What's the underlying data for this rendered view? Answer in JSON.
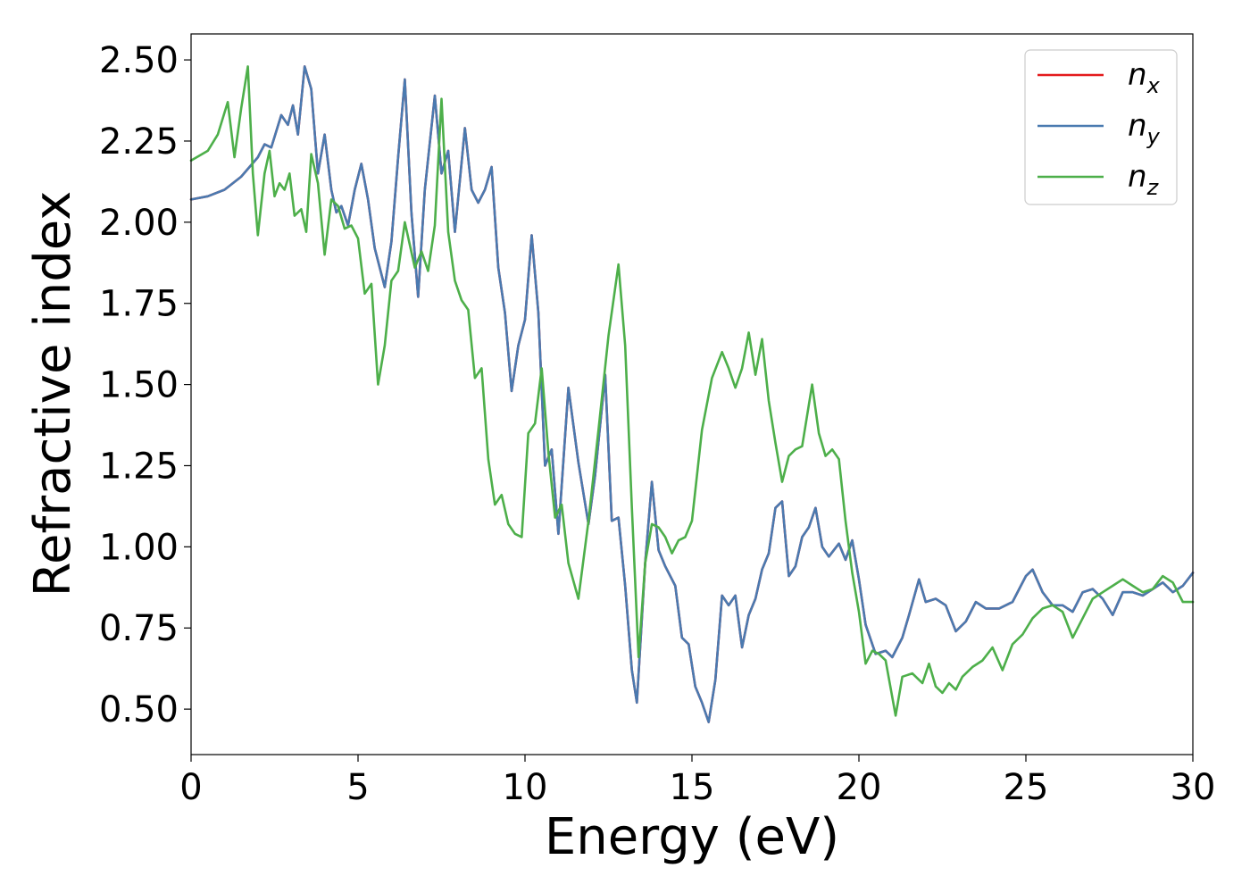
{
  "chart_data": {
    "type": "line",
    "title": "",
    "xlabel": "Energy (eV)",
    "ylabel": "Refractive index",
    "xlim": [
      0,
      30
    ],
    "ylim": [
      0.36,
      2.58
    ],
    "xticks": [
      0,
      5,
      10,
      15,
      20,
      25,
      30
    ],
    "xtick_labels": [
      "0",
      "5",
      "10",
      "15",
      "20",
      "25",
      "30"
    ],
    "yticks": [
      0.5,
      0.75,
      1.0,
      1.25,
      1.5,
      1.75,
      2.0,
      2.25,
      2.5
    ],
    "ytick_labels": [
      "0.50",
      "0.75",
      "1.00",
      "1.25",
      "1.50",
      "1.75",
      "2.00",
      "2.25",
      "2.50"
    ],
    "grid": false,
    "legend_position": "top-right",
    "series": [
      {
        "name": "n_x",
        "label_base": "n",
        "label_sub": "x",
        "color": "#e41a1c",
        "x": [
          0,
          0.5,
          1.0,
          1.5,
          2.0,
          2.2,
          2.4,
          2.7,
          2.9,
          3.05,
          3.2,
          3.4,
          3.6,
          3.8,
          4.0,
          4.2,
          4.35,
          4.5,
          4.7,
          4.9,
          5.1,
          5.3,
          5.5,
          5.8,
          6.0,
          6.2,
          6.4,
          6.6,
          6.8,
          7.0,
          7.3,
          7.5,
          7.7,
          7.9,
          8.2,
          8.4,
          8.6,
          8.8,
          9.0,
          9.2,
          9.4,
          9.6,
          9.8,
          10.0,
          10.2,
          10.4,
          10.6,
          10.8,
          11.0,
          11.3,
          11.6,
          11.9,
          12.1,
          12.4,
          12.6,
          12.8,
          13.0,
          13.2,
          13.35,
          13.6,
          13.8,
          14.0,
          14.2,
          14.5,
          14.7,
          14.9,
          15.1,
          15.3,
          15.5,
          15.7,
          15.9,
          16.1,
          16.3,
          16.5,
          16.7,
          16.9,
          17.1,
          17.3,
          17.5,
          17.7,
          17.9,
          18.1,
          18.3,
          18.5,
          18.7,
          18.9,
          19.1,
          19.4,
          19.6,
          19.8,
          20.0,
          20.2,
          20.5,
          20.8,
          21.0,
          21.3,
          21.5,
          21.8,
          22.0,
          22.3,
          22.6,
          22.9,
          23.2,
          23.5,
          23.8,
          24.2,
          24.6,
          25.0,
          25.2,
          25.5,
          25.8,
          26.1,
          26.4,
          26.7,
          27.0,
          27.3,
          27.6,
          27.9,
          28.2,
          28.5,
          28.8,
          29.1,
          29.4,
          29.7,
          30.0
        ],
        "y": [
          2.07,
          2.08,
          2.1,
          2.14,
          2.2,
          2.24,
          2.23,
          2.33,
          2.3,
          2.36,
          2.27,
          2.48,
          2.41,
          2.15,
          2.27,
          2.1,
          2.03,
          2.05,
          1.99,
          2.1,
          2.18,
          2.07,
          1.92,
          1.8,
          1.94,
          2.2,
          2.44,
          2.03,
          1.77,
          2.1,
          2.39,
          2.15,
          2.22,
          1.97,
          2.29,
          2.1,
          2.06,
          2.1,
          2.17,
          1.86,
          1.72,
          1.48,
          1.62,
          1.7,
          1.96,
          1.72,
          1.25,
          1.3,
          1.04,
          1.49,
          1.26,
          1.07,
          1.22,
          1.53,
          1.08,
          1.09,
          0.88,
          0.62,
          0.52,
          0.95,
          1.2,
          0.99,
          0.94,
          0.88,
          0.72,
          0.7,
          0.57,
          0.52,
          0.46,
          0.59,
          0.85,
          0.82,
          0.85,
          0.69,
          0.79,
          0.84,
          0.93,
          0.98,
          1.12,
          1.14,
          0.91,
          0.94,
          1.03,
          1.06,
          1.12,
          1.0,
          0.97,
          1.01,
          0.96,
          1.02,
          0.9,
          0.76,
          0.67,
          0.68,
          0.66,
          0.72,
          0.79,
          0.9,
          0.83,
          0.84,
          0.82,
          0.74,
          0.77,
          0.83,
          0.81,
          0.81,
          0.83,
          0.91,
          0.93,
          0.86,
          0.82,
          0.82,
          0.8,
          0.86,
          0.87,
          0.84,
          0.79,
          0.86,
          0.86,
          0.85,
          0.87,
          0.89,
          0.86,
          0.88,
          0.92
        ]
      },
      {
        "name": "n_y",
        "label_base": "n",
        "label_sub": "y",
        "color": "#4a7ab0",
        "x": [
          0,
          0.5,
          1.0,
          1.5,
          2.0,
          2.2,
          2.4,
          2.7,
          2.9,
          3.05,
          3.2,
          3.4,
          3.6,
          3.8,
          4.0,
          4.2,
          4.35,
          4.5,
          4.7,
          4.9,
          5.1,
          5.3,
          5.5,
          5.8,
          6.0,
          6.2,
          6.4,
          6.6,
          6.8,
          7.0,
          7.3,
          7.5,
          7.7,
          7.9,
          8.2,
          8.4,
          8.6,
          8.8,
          9.0,
          9.2,
          9.4,
          9.6,
          9.8,
          10.0,
          10.2,
          10.4,
          10.6,
          10.8,
          11.0,
          11.3,
          11.6,
          11.9,
          12.1,
          12.4,
          12.6,
          12.8,
          13.0,
          13.2,
          13.35,
          13.6,
          13.8,
          14.0,
          14.2,
          14.5,
          14.7,
          14.9,
          15.1,
          15.3,
          15.5,
          15.7,
          15.9,
          16.1,
          16.3,
          16.5,
          16.7,
          16.9,
          17.1,
          17.3,
          17.5,
          17.7,
          17.9,
          18.1,
          18.3,
          18.5,
          18.7,
          18.9,
          19.1,
          19.4,
          19.6,
          19.8,
          20.0,
          20.2,
          20.5,
          20.8,
          21.0,
          21.3,
          21.5,
          21.8,
          22.0,
          22.3,
          22.6,
          22.9,
          23.2,
          23.5,
          23.8,
          24.2,
          24.6,
          25.0,
          25.2,
          25.5,
          25.8,
          26.1,
          26.4,
          26.7,
          27.0,
          27.3,
          27.6,
          27.9,
          28.2,
          28.5,
          28.8,
          29.1,
          29.4,
          29.7,
          30.0
        ],
        "y": [
          2.07,
          2.08,
          2.1,
          2.14,
          2.2,
          2.24,
          2.23,
          2.33,
          2.3,
          2.36,
          2.27,
          2.48,
          2.41,
          2.15,
          2.27,
          2.1,
          2.03,
          2.05,
          1.99,
          2.1,
          2.18,
          2.07,
          1.92,
          1.8,
          1.94,
          2.2,
          2.44,
          2.03,
          1.77,
          2.1,
          2.39,
          2.15,
          2.22,
          1.97,
          2.29,
          2.1,
          2.06,
          2.1,
          2.17,
          1.86,
          1.72,
          1.48,
          1.62,
          1.7,
          1.96,
          1.72,
          1.25,
          1.3,
          1.04,
          1.49,
          1.26,
          1.07,
          1.22,
          1.53,
          1.08,
          1.09,
          0.88,
          0.62,
          0.52,
          0.95,
          1.2,
          0.99,
          0.94,
          0.88,
          0.72,
          0.7,
          0.57,
          0.52,
          0.46,
          0.59,
          0.85,
          0.82,
          0.85,
          0.69,
          0.79,
          0.84,
          0.93,
          0.98,
          1.12,
          1.14,
          0.91,
          0.94,
          1.03,
          1.06,
          1.12,
          1.0,
          0.97,
          1.01,
          0.96,
          1.02,
          0.9,
          0.76,
          0.67,
          0.68,
          0.66,
          0.72,
          0.79,
          0.9,
          0.83,
          0.84,
          0.82,
          0.74,
          0.77,
          0.83,
          0.81,
          0.81,
          0.83,
          0.91,
          0.93,
          0.86,
          0.82,
          0.82,
          0.8,
          0.86,
          0.87,
          0.84,
          0.79,
          0.86,
          0.86,
          0.85,
          0.87,
          0.89,
          0.86,
          0.88,
          0.92
        ]
      },
      {
        "name": "n_z",
        "label_base": "n",
        "label_sub": "z",
        "color": "#4daf4a",
        "x": [
          0,
          0.5,
          0.8,
          1.1,
          1.3,
          1.5,
          1.7,
          1.85,
          2.0,
          2.2,
          2.35,
          2.5,
          2.65,
          2.8,
          2.95,
          3.1,
          3.3,
          3.45,
          3.6,
          3.8,
          4.0,
          4.2,
          4.4,
          4.6,
          4.8,
          5.0,
          5.2,
          5.4,
          5.6,
          5.8,
          6.0,
          6.2,
          6.4,
          6.7,
          6.9,
          7.1,
          7.3,
          7.5,
          7.7,
          7.9,
          8.1,
          8.3,
          8.5,
          8.7,
          8.9,
          9.1,
          9.3,
          9.5,
          9.7,
          9.9,
          10.1,
          10.3,
          10.5,
          10.7,
          10.9,
          11.1,
          11.3,
          11.6,
          11.9,
          12.2,
          12.5,
          12.8,
          13.0,
          13.2,
          13.4,
          13.6,
          13.8,
          14.0,
          14.2,
          14.4,
          14.6,
          14.8,
          15.0,
          15.3,
          15.6,
          15.9,
          16.1,
          16.3,
          16.5,
          16.7,
          16.9,
          17.1,
          17.3,
          17.5,
          17.7,
          17.9,
          18.1,
          18.3,
          18.6,
          18.8,
          19.0,
          19.2,
          19.4,
          19.6,
          19.8,
          20.0,
          20.2,
          20.4,
          20.6,
          20.8,
          21.1,
          21.3,
          21.6,
          21.9,
          22.1,
          22.3,
          22.5,
          22.7,
          22.9,
          23.1,
          23.4,
          23.7,
          24.0,
          24.3,
          24.6,
          24.9,
          25.2,
          25.5,
          25.8,
          26.1,
          26.4,
          26.7,
          27.0,
          27.3,
          27.6,
          27.9,
          28.2,
          28.5,
          28.8,
          29.1,
          29.4,
          29.7,
          30.0
        ],
        "y": [
          2.19,
          2.22,
          2.27,
          2.37,
          2.2,
          2.35,
          2.48,
          2.15,
          1.96,
          2.15,
          2.22,
          2.08,
          2.12,
          2.1,
          2.15,
          2.02,
          2.04,
          1.97,
          2.21,
          2.12,
          1.9,
          2.07,
          2.05,
          1.98,
          1.99,
          1.95,
          1.78,
          1.81,
          1.5,
          1.62,
          1.82,
          1.85,
          2.0,
          1.86,
          1.91,
          1.85,
          1.99,
          2.38,
          1.97,
          1.82,
          1.76,
          1.73,
          1.52,
          1.55,
          1.27,
          1.13,
          1.16,
          1.07,
          1.04,
          1.03,
          1.35,
          1.38,
          1.55,
          1.29,
          1.09,
          1.13,
          0.95,
          0.84,
          1.08,
          1.36,
          1.65,
          1.87,
          1.62,
          1.12,
          0.66,
          0.95,
          1.07,
          1.06,
          1.03,
          0.98,
          1.02,
          1.03,
          1.08,
          1.36,
          1.52,
          1.6,
          1.55,
          1.49,
          1.55,
          1.66,
          1.53,
          1.64,
          1.45,
          1.32,
          1.2,
          1.28,
          1.3,
          1.31,
          1.5,
          1.35,
          1.28,
          1.3,
          1.27,
          1.08,
          0.92,
          0.8,
          0.64,
          0.68,
          0.67,
          0.65,
          0.48,
          0.6,
          0.61,
          0.58,
          0.64,
          0.57,
          0.55,
          0.58,
          0.56,
          0.6,
          0.63,
          0.65,
          0.69,
          0.62,
          0.7,
          0.73,
          0.78,
          0.81,
          0.82,
          0.8,
          0.72,
          0.78,
          0.84,
          0.86,
          0.88,
          0.9,
          0.88,
          0.86,
          0.87,
          0.91,
          0.89,
          0.83,
          0.83
        ]
      }
    ]
  }
}
